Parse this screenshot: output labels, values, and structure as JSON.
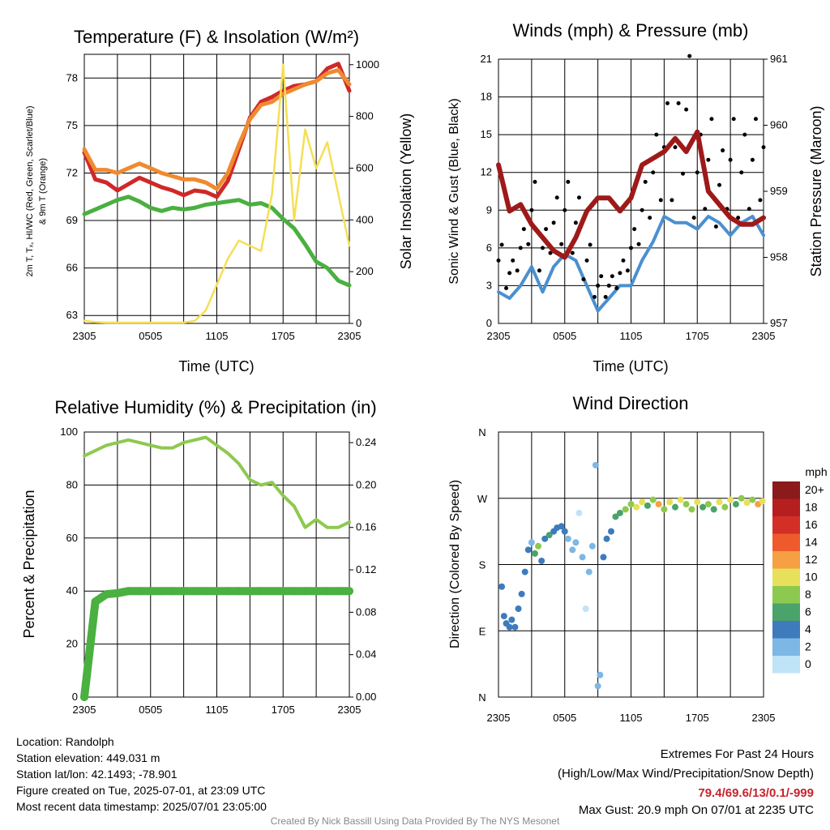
{
  "panels": {
    "temp": {
      "title": "Temperature (F) & Insolation (W/m²)",
      "ylabel_left_1": "2m T, Tₓ, HI/WC (Red, Green, Scarlet/Blue)",
      "ylabel_left_2": "& 9m T (Orange)",
      "ylabel_right": "Solar Insolation (Yellow)",
      "xlabel": "Time (UTC)"
    },
    "wind": {
      "title": "Winds (mph) & Pressure (mb)",
      "ylabel_left": "Sonic Wind & Gust (Blue, Black)",
      "ylabel_right": "Station Pressure (Maroon)",
      "xlabel": "Time (UTC)"
    },
    "rh": {
      "title": "Relative Humidity (%) & Precipitation (in)",
      "ylabel_left": "Percent & Precipitation"
    },
    "dir": {
      "title": "Wind Direction",
      "ylabel_left": "Direction (Colored By Speed)",
      "legend_unit": "mph"
    }
  },
  "colorbar": {
    "labels": [
      "20+",
      "18",
      "16",
      "14",
      "12",
      "10",
      "8",
      "6",
      "4",
      "2",
      "0"
    ],
    "colors": [
      "#8b1a1a",
      "#b51f1f",
      "#d32f27",
      "#ee5a2c",
      "#f5a043",
      "#e7e05a",
      "#8ec94f",
      "#4aa36a",
      "#3d7bbd",
      "#7db7e6",
      "#bfe3f7"
    ]
  },
  "footer": {
    "location": "Location: Randolph",
    "elevation": "Station elevation: 449.031 m",
    "latlon": "Station lat/lon: 42.1493; -78.901",
    "created": "Figure created on Tue, 2025-07-01, at 23:09 UTC",
    "recent": "Most recent data timestamp: 2025/07/01 23:05:00",
    "extremes_title": "Extremes For Past 24 Hours",
    "extremes_sub": "(High/Low/Max Wind/Precipitation/Snow Depth)",
    "extremes_values": "79.4/69.6/13/0.1/-999",
    "max_gust": "Max Gust: 20.9 mph On 07/01 at 2235 UTC",
    "credit": "Created By Nick Bassill Using Data Provided By The NYS Mesonet"
  },
  "chart_data": [
    {
      "type": "line",
      "title": "Temperature (F) & Insolation (W/m²)",
      "xlabel": "Time (UTC)",
      "ylabel": "2m T, Tₓ, HI/WC (Red, Green, Scarlet/Blue) & 9m T (Orange)",
      "y2label": "Solar Insolation (Yellow)",
      "x_ticks": [
        "2305",
        "0505",
        "1105",
        "1705",
        "2305"
      ],
      "ylim": [
        62.5,
        79.5
      ],
      "yticks": [
        63,
        66,
        69,
        72,
        75,
        78
      ],
      "y2lim": [
        0,
        1000
      ],
      "y2ticks": [
        0,
        200,
        400,
        600,
        800,
        1000
      ],
      "x_hours": [
        0,
        1,
        2,
        3,
        4,
        5,
        6,
        7,
        8,
        9,
        10,
        11,
        12,
        13,
        14,
        15,
        16,
        17,
        18,
        19,
        20,
        21,
        22,
        23,
        24
      ],
      "series": [
        {
          "name": "2m T",
          "color": "#d02828",
          "values": [
            73.3,
            71.6,
            71.4,
            70.9,
            71.3,
            71.7,
            71.4,
            71.1,
            70.9,
            70.6,
            70.9,
            70.8,
            70.5,
            71.5,
            73.5,
            75.5,
            76.5,
            76.8,
            77.2,
            77.5,
            77.6,
            77.8,
            78.6,
            78.9,
            77.2
          ],
          "axis": "left"
        },
        {
          "name": "9m T",
          "color": "#f08a30",
          "values": [
            73.5,
            72.2,
            72.2,
            72.0,
            72.3,
            72.6,
            72.3,
            72.0,
            71.8,
            71.6,
            71.6,
            71.4,
            71.0,
            72.0,
            73.8,
            75.4,
            76.3,
            76.5,
            77.0,
            77.3,
            77.6,
            77.8,
            78.3,
            78.5,
            77.6
          ],
          "axis": "left"
        },
        {
          "name": "Td",
          "color": "#4ab040",
          "values": [
            69.4,
            69.7,
            70.0,
            70.3,
            70.5,
            70.2,
            69.8,
            69.6,
            69.8,
            69.7,
            69.8,
            70.0,
            70.1,
            70.2,
            70.3,
            70.0,
            70.1,
            69.8,
            69.1,
            68.5,
            67.5,
            66.4,
            66.0,
            65.2,
            64.9
          ],
          "axis": "left"
        },
        {
          "name": "Insolation",
          "color": "#f5df55",
          "values": [
            10,
            5,
            3,
            3,
            3,
            3,
            3,
            3,
            3,
            3,
            10,
            50,
            150,
            250,
            320,
            300,
            280,
            500,
            1000,
            400,
            750,
            600,
            700,
            500,
            300
          ],
          "axis": "right"
        }
      ]
    },
    {
      "type": "line",
      "title": "Winds (mph) & Pressure (mb)",
      "xlabel": "Time (UTC)",
      "ylabel": "Sonic Wind & Gust (Blue, Black)",
      "y2label": "Station Pressure (Maroon)",
      "x_ticks": [
        "2305",
        "0505",
        "1105",
        "1705",
        "2305"
      ],
      "ylim": [
        0,
        21
      ],
      "yticks": [
        0,
        3,
        6,
        9,
        12,
        15,
        18,
        21
      ],
      "y2lim": [
        957,
        961
      ],
      "y2ticks": [
        957,
        958,
        959,
        960,
        961
      ],
      "x_hours": [
        0,
        1,
        2,
        3,
        4,
        5,
        6,
        7,
        8,
        9,
        10,
        11,
        12,
        13,
        14,
        15,
        16,
        17,
        18,
        19,
        20,
        21,
        22,
        23,
        24
      ],
      "series": [
        {
          "name": "Sonic Wind",
          "color": "#4a90cf",
          "values": [
            2.5,
            2.0,
            3.0,
            4.5,
            2.5,
            4.5,
            5.5,
            5.0,
            3.0,
            1.0,
            2.0,
            3.0,
            3.0,
            5.0,
            6.5,
            8.5,
            8.0,
            8.0,
            7.5,
            8.5,
            8.0,
            7.0,
            8.0,
            8.5,
            7.0
          ],
          "axis": "left"
        },
        {
          "name": "Gust",
          "color": "#000000",
          "values": [
            5,
            4,
            6,
            9,
            6,
            8,
            9,
            8,
            5,
            3,
            3,
            4,
            6,
            9,
            12,
            14,
            14,
            17,
            12,
            13,
            11,
            13,
            12,
            13,
            14
          ],
          "axis": "left"
        },
        {
          "name": "Station Pressure",
          "color": "#9e1a1a",
          "values": [
            959.4,
            958.7,
            958.8,
            958.5,
            958.3,
            958.1,
            958.0,
            958.3,
            958.7,
            958.9,
            958.9,
            958.7,
            958.9,
            959.4,
            959.5,
            959.6,
            959.8,
            959.6,
            959.9,
            959.0,
            958.8,
            958.6,
            958.5,
            958.5,
            958.6
          ],
          "axis": "right"
        }
      ]
    },
    {
      "type": "line",
      "title": "Relative Humidity (%) & Precipitation (in)",
      "ylabel": "Percent & Precipitation",
      "x_ticks": [
        "2305",
        "0505",
        "1105",
        "1705",
        "2305"
      ],
      "ylim": [
        0,
        100
      ],
      "yticks": [
        0,
        20,
        40,
        60,
        80,
        100
      ],
      "y2lim": [
        0,
        0.25
      ],
      "y2ticks": [
        0.0,
        0.04,
        0.08,
        0.12,
        0.16,
        0.2,
        0.24
      ],
      "x_hours": [
        0,
        1,
        2,
        3,
        4,
        5,
        6,
        7,
        8,
        9,
        10,
        11,
        12,
        13,
        14,
        15,
        16,
        17,
        18,
        19,
        20,
        21,
        22,
        23,
        24
      ],
      "series": [
        {
          "name": "Relative Humidity",
          "color": "#8ec94f",
          "values": [
            91,
            93,
            95,
            96,
            97,
            96,
            95,
            94,
            94,
            96,
            97,
            98,
            95,
            92,
            88,
            82,
            80,
            81,
            76,
            72,
            64,
            67,
            64,
            64,
            66
          ],
          "axis": "left"
        },
        {
          "name": "Precipitation",
          "color": "#4ab040",
          "values": [
            0.0,
            0.09,
            0.097,
            0.098,
            0.1,
            0.1,
            0.1,
            0.1,
            0.1,
            0.1,
            0.1,
            0.1,
            0.1,
            0.1,
            0.1,
            0.1,
            0.1,
            0.1,
            0.1,
            0.1,
            0.1,
            0.1,
            0.1,
            0.1,
            0.1
          ],
          "axis": "right"
        }
      ]
    },
    {
      "type": "scatter",
      "title": "Wind Direction",
      "ylabel": "Direction (Colored By Speed)",
      "x_ticks": [
        "2305",
        "0505",
        "1105",
        "1705",
        "2305"
      ],
      "yticks": [
        "N",
        "E",
        "S",
        "W",
        "N"
      ],
      "ylim": [
        0,
        360
      ],
      "points": [
        {
          "x": 0.3,
          "y": 150,
          "speed": 3
        },
        {
          "x": 0.5,
          "y": 110,
          "speed": 3
        },
        {
          "x": 0.7,
          "y": 100,
          "speed": 4
        },
        {
          "x": 1.0,
          "y": 95,
          "speed": 3
        },
        {
          "x": 1.2,
          "y": 105,
          "speed": 4
        },
        {
          "x": 1.5,
          "y": 95,
          "speed": 3
        },
        {
          "x": 1.8,
          "y": 120,
          "speed": 4
        },
        {
          "x": 2.1,
          "y": 140,
          "speed": 3
        },
        {
          "x": 2.4,
          "y": 170,
          "speed": 3
        },
        {
          "x": 2.7,
          "y": 200,
          "speed": 4
        },
        {
          "x": 3.0,
          "y": 210,
          "speed": 1
        },
        {
          "x": 3.3,
          "y": 195,
          "speed": 5
        },
        {
          "x": 3.6,
          "y": 205,
          "speed": 7
        },
        {
          "x": 3.9,
          "y": 185,
          "speed": 4
        },
        {
          "x": 4.2,
          "y": 215,
          "speed": 4
        },
        {
          "x": 4.6,
          "y": 220,
          "speed": 5
        },
        {
          "x": 5.0,
          "y": 225,
          "speed": 4
        },
        {
          "x": 5.3,
          "y": 230,
          "speed": 4
        },
        {
          "x": 5.7,
          "y": 232,
          "speed": 3
        },
        {
          "x": 6.0,
          "y": 225,
          "speed": 3
        },
        {
          "x": 6.3,
          "y": 215,
          "speed": 2
        },
        {
          "x": 6.7,
          "y": 200,
          "speed": 2
        },
        {
          "x": 7.0,
          "y": 210,
          "speed": 1
        },
        {
          "x": 7.3,
          "y": 250,
          "speed": 0
        },
        {
          "x": 7.6,
          "y": 190,
          "speed": 2
        },
        {
          "x": 7.9,
          "y": 120,
          "speed": 0
        },
        {
          "x": 8.2,
          "y": 170,
          "speed": 1
        },
        {
          "x": 8.5,
          "y": 205,
          "speed": 2
        },
        {
          "x": 8.8,
          "y": 315,
          "speed": 2
        },
        {
          "x": 9.0,
          "y": 15,
          "speed": 1
        },
        {
          "x": 9.2,
          "y": 30,
          "speed": 1
        },
        {
          "x": 9.5,
          "y": 190,
          "speed": 4
        },
        {
          "x": 9.8,
          "y": 215,
          "speed": 3
        },
        {
          "x": 10.2,
          "y": 225,
          "speed": 3
        },
        {
          "x": 10.6,
          "y": 245,
          "speed": 6
        },
        {
          "x": 11.0,
          "y": 250,
          "speed": 5
        },
        {
          "x": 11.5,
          "y": 255,
          "speed": 8
        },
        {
          "x": 12.0,
          "y": 262,
          "speed": 7
        },
        {
          "x": 12.5,
          "y": 258,
          "speed": 10
        },
        {
          "x": 13.0,
          "y": 265,
          "speed": 9
        },
        {
          "x": 13.5,
          "y": 260,
          "speed": 6
        },
        {
          "x": 14.0,
          "y": 268,
          "speed": 8
        },
        {
          "x": 14.5,
          "y": 262,
          "speed": 11
        },
        {
          "x": 15.0,
          "y": 255,
          "speed": 7
        },
        {
          "x": 15.5,
          "y": 265,
          "speed": 9
        },
        {
          "x": 16.0,
          "y": 258,
          "speed": 6
        },
        {
          "x": 16.5,
          "y": 268,
          "speed": 10
        },
        {
          "x": 17.0,
          "y": 262,
          "speed": 8
        },
        {
          "x": 17.5,
          "y": 255,
          "speed": 7
        },
        {
          "x": 18.0,
          "y": 265,
          "speed": 9
        },
        {
          "x": 18.5,
          "y": 258,
          "speed": 6
        },
        {
          "x": 19.0,
          "y": 262,
          "speed": 8
        },
        {
          "x": 19.5,
          "y": 255,
          "speed": 5
        },
        {
          "x": 20.0,
          "y": 265,
          "speed": 10
        },
        {
          "x": 20.5,
          "y": 258,
          "speed": 7
        },
        {
          "x": 21.0,
          "y": 268,
          "speed": 9
        },
        {
          "x": 21.5,
          "y": 262,
          "speed": 6
        },
        {
          "x": 22.0,
          "y": 270,
          "speed": 8
        },
        {
          "x": 22.5,
          "y": 264,
          "speed": 10
        },
        {
          "x": 23.0,
          "y": 268,
          "speed": 7
        },
        {
          "x": 23.5,
          "y": 262,
          "speed": 11
        },
        {
          "x": 23.9,
          "y": 266,
          "speed": 9
        }
      ]
    }
  ]
}
